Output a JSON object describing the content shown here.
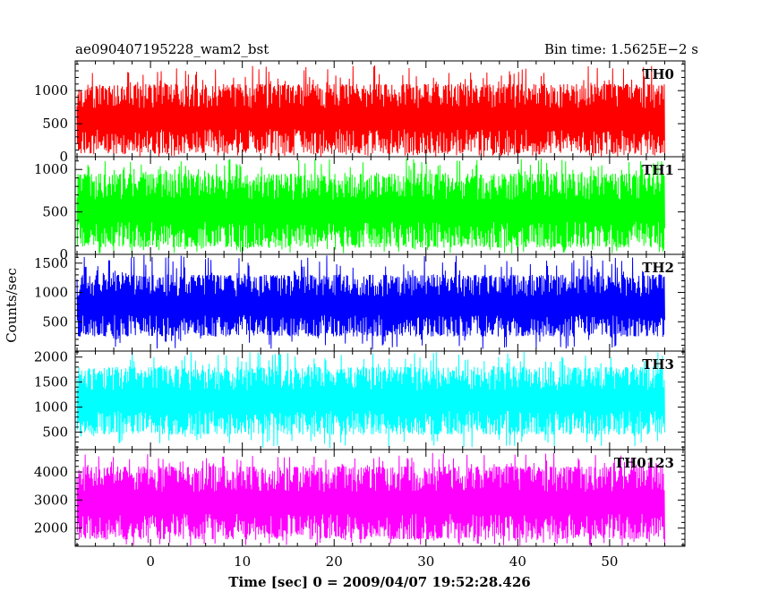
{
  "title_left": "ae090407195228_wam2_bst",
  "title_right": "Bin time: 1.5625E−2 s",
  "xlabel": "Time [sec] 0 = 2009/04/07 19:52:28.426",
  "ylabel": "Counts/sec",
  "chart_data": [
    {
      "type": "line",
      "name": "TH0",
      "color": "#ff0000",
      "xlim": [
        -8.2,
        58.2
      ],
      "x_ticks": [
        0,
        10,
        20,
        30,
        40,
        50
      ],
      "ylim": [
        0,
        1450
      ],
      "y_ticks": [
        0,
        500,
        1000
      ],
      "y_tick_labels": [
        "0",
        "500",
        "1000"
      ],
      "data_x_range": [
        -8,
        56
      ],
      "typical_low": 50,
      "typical_high": 1100,
      "spike_high": 1380
    },
    {
      "type": "line",
      "name": "TH1",
      "color": "#00ff00",
      "xlim": [
        -8.2,
        58.2
      ],
      "x_ticks": [
        0,
        10,
        20,
        30,
        40,
        50
      ],
      "ylim": [
        0,
        1150
      ],
      "y_ticks": [
        0,
        500,
        1000
      ],
      "y_tick_labels": [
        "0",
        "500",
        "1000"
      ],
      "data_x_range": [
        -8,
        56
      ],
      "typical_low": 80,
      "typical_high": 950,
      "spike_high": 1130
    },
    {
      "type": "line",
      "name": "TH2",
      "color": "#0000ff",
      "xlim": [
        -8.2,
        58.2
      ],
      "x_ticks": [
        0,
        10,
        20,
        30,
        40,
        50
      ],
      "ylim": [
        0,
        1650
      ],
      "y_ticks": [
        500,
        1000,
        1500
      ],
      "y_tick_labels": [
        "500",
        "1000",
        "1500"
      ],
      "data_x_range": [
        -8,
        56
      ],
      "typical_low": 250,
      "typical_high": 1300,
      "spike_high": 1640
    },
    {
      "type": "line",
      "name": "TH3",
      "color": "#00ffff",
      "xlim": [
        -8.2,
        58.2
      ],
      "x_ticks": [
        0,
        10,
        20,
        30,
        40,
        50
      ],
      "ylim": [
        150,
        2120
      ],
      "y_ticks": [
        500,
        1000,
        1500,
        2000
      ],
      "y_tick_labels": [
        "500",
        "1000",
        "1500",
        "2000"
      ],
      "data_x_range": [
        -8,
        56
      ],
      "typical_low": 450,
      "typical_high": 1800,
      "spike_high": 2100
    },
    {
      "type": "line",
      "name": "TH0123",
      "color": "#ff00ff",
      "xlim": [
        -8.2,
        58.2
      ],
      "x_ticks": [
        0,
        10,
        20,
        30,
        40,
        50
      ],
      "x_tick_labels": [
        "0",
        "10",
        "20",
        "30",
        "40",
        "50"
      ],
      "ylim": [
        1350,
        4800
      ],
      "y_ticks": [
        2000,
        3000,
        4000
      ],
      "y_tick_labels": [
        "2000",
        "3000",
        "4000"
      ],
      "data_x_range": [
        -8,
        56
      ],
      "typical_low": 1600,
      "typical_high": 4200,
      "spike_high": 4700
    }
  ]
}
